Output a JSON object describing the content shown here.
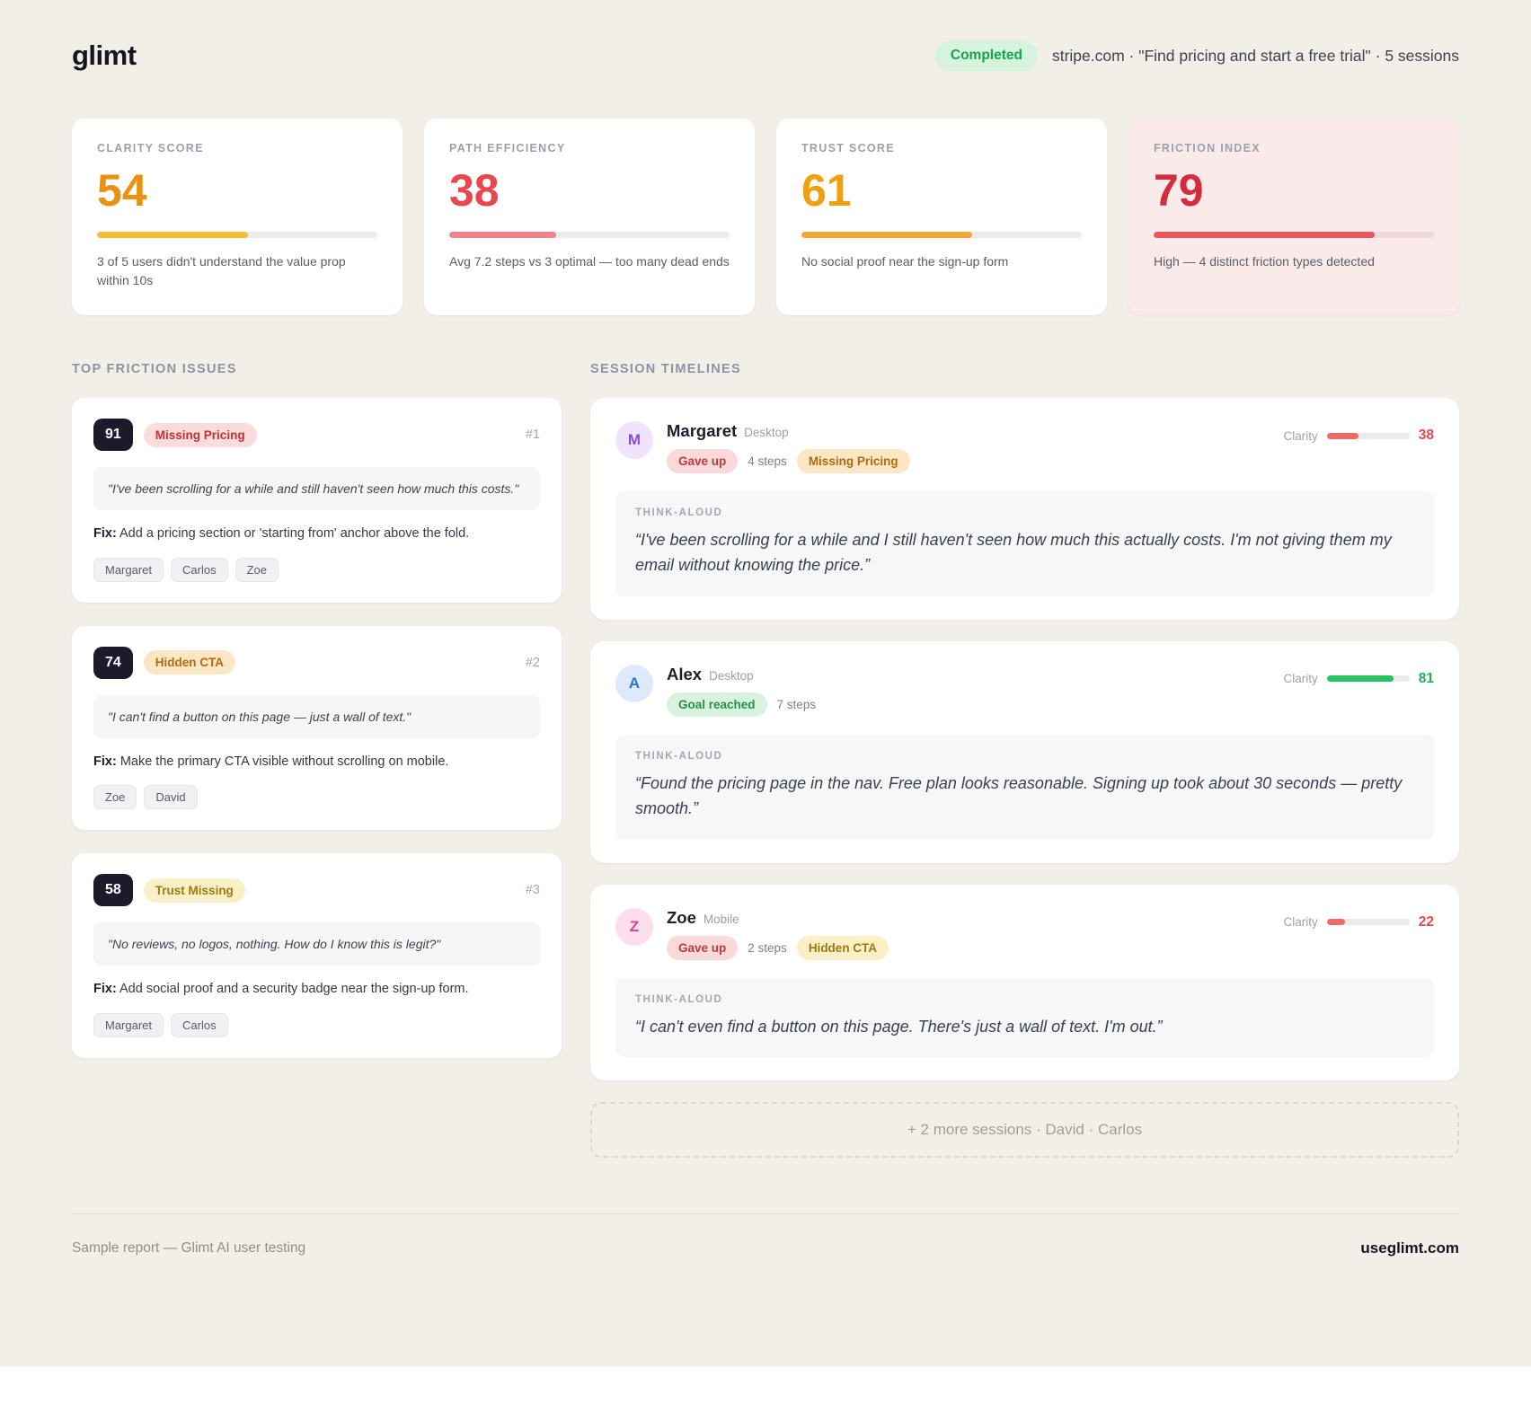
{
  "palette": {
    "page_bg": "#F2EFE9",
    "card_bg": "#FFFFFF",
    "alert_card_bg": "#FBEAEA",
    "ink": "#15151F",
    "muted": "#9BA0AC",
    "badge_completed_bg": "#D6F3DE",
    "badge_completed_fg": "#16A34A",
    "pill_red_bg": "#FADCDC",
    "pill_red_fg": "#C22F36",
    "pill_orange_bg": "#FBE7C6",
    "pill_orange_fg": "#B26A0C",
    "pill_yellow_bg": "#FAF0C8",
    "pill_yellow_fg": "#A1790B",
    "status_negative_bg": "#F9D9D9",
    "status_negative_fg": "#BB3A3A",
    "status_positive_bg": "#D8F2DE",
    "status_positive_fg": "#27904A"
  },
  "header": {
    "logo": "glimt",
    "status_badge": "Completed",
    "meta": "stripe.com · \"Find pricing and start a free trial\" · 5 sessions"
  },
  "metrics": [
    {
      "label": "CLARITY SCORE",
      "value": "54",
      "pct": 54,
      "value_color": "#E99110",
      "bar_color": "#F5BC38",
      "desc": "3 of 5 users didn't understand the value prop within 10s"
    },
    {
      "label": "PATH EFFICIENCY",
      "value": "38",
      "pct": 38,
      "value_color": "#E8474D",
      "bar_color": "#F28289",
      "desc": "Avg 7.2 steps vs 3 optimal — too many dead ends"
    },
    {
      "label": "TRUST SCORE",
      "value": "61",
      "pct": 61,
      "value_color": "#EFA00E",
      "bar_color": "#F2A735",
      "desc": "No social proof near the sign-up form"
    },
    {
      "label": "FRICTION INDEX",
      "value": "79",
      "pct": 79,
      "value_color": "#D22C3F",
      "bar_color": "#EC5560",
      "desc": "High — 4 distinct friction types detected"
    }
  ],
  "friction": {
    "title": "TOP FRICTION ISSUES",
    "issues": [
      {
        "score": "91",
        "tag": "Missing Pricing",
        "rank": "#1",
        "quote": "\"I've been scrolling for a while and still haven't seen how much this costs.\"",
        "fix_label": "Fix:",
        "fix_text": "Add a pricing section or 'starting from' anchor above the fold.",
        "users": [
          "Margaret",
          "Carlos",
          "Zoe"
        ]
      },
      {
        "score": "74",
        "tag": "Hidden CTA",
        "rank": "#2",
        "quote": "\"I can't find a button on this page — just a wall of text.\"",
        "fix_label": "Fix:",
        "fix_text": "Make the primary CTA visible without scrolling on mobile.",
        "users": [
          "Zoe",
          "David"
        ]
      },
      {
        "score": "58",
        "tag": "Trust Missing",
        "rank": "#3",
        "quote": "\"No reviews, no logos, nothing. How do I know this is legit?\"",
        "fix_label": "Fix:",
        "fix_text": "Add social proof and a security badge near the sign-up form.",
        "users": [
          "Margaret",
          "Carlos"
        ]
      }
    ]
  },
  "sessions": {
    "title": "SESSION TIMELINES",
    "clarity_label": "Clarity",
    "thinkaloud_label": "THINK-ALOUD",
    "items": [
      {
        "initial": "M",
        "avatar_bg": "#EFE4FB",
        "avatar_fg": "#8A4BD8",
        "name": "Margaret",
        "device": "Desktop",
        "status": "Gave up",
        "steps": "4 steps",
        "tag": "Missing Pricing",
        "clarity_value": "38",
        "clarity_pct": 38,
        "clarity_color": "#E8474D",
        "clarity_bar_color": "#EF6A63",
        "quote": "“I've been scrolling for a while and I still haven't seen how much this actually costs. I'm not giving them my email without knowing the price.”"
      },
      {
        "initial": "A",
        "avatar_bg": "#DCEAFC",
        "avatar_fg": "#3070D6",
        "name": "Alex",
        "device": "Desktop",
        "status": "Goal reached",
        "steps": "7 steps",
        "clarity_value": "81",
        "clarity_pct": 81,
        "clarity_color": "#22B05B",
        "clarity_bar_color": "#29C163",
        "quote": "“Found the pricing page in the nav. Free plan looks reasonable. Signing up took about 30 seconds — pretty smooth.”"
      },
      {
        "initial": "Z",
        "avatar_bg": "#FBDFED",
        "avatar_fg": "#D8448F",
        "name": "Zoe",
        "device": "Mobile",
        "status": "Gave up",
        "steps": "2 steps",
        "tag": "Hidden CTA",
        "clarity_value": "22",
        "clarity_pct": 22,
        "clarity_color": "#E8474D",
        "clarity_bar_color": "#EF6A63",
        "quote": "“I can't even find a button on this page. There's just a wall of text. I'm out.”"
      }
    ],
    "more": "+ 2 more sessions · David · Carlos"
  },
  "footer": {
    "left": "Sample report — Glimt AI user testing",
    "right": "useglimt.com"
  }
}
